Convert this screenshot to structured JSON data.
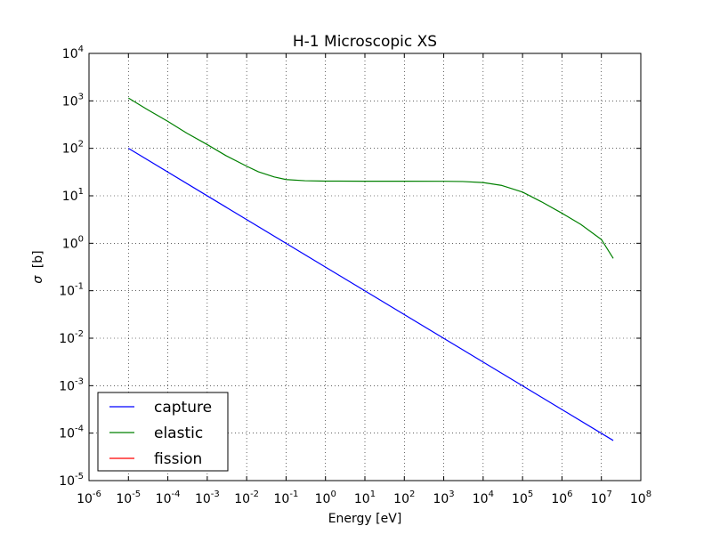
{
  "chart_data": {
    "type": "line",
    "title": "H-1 Microscopic XS",
    "xlabel": "Energy [eV]",
    "ylabel_symbol": "σ",
    "ylabel_unit": "[b]",
    "xscale": "log",
    "yscale": "log",
    "xlim": [
      1e-06,
      100000000.0
    ],
    "ylim": [
      1e-05,
      10000.0
    ],
    "grid": true,
    "x_ticks": [
      {
        "base": "10",
        "exp": "-6",
        "value": 1e-06
      },
      {
        "base": "10",
        "exp": "-5",
        "value": 1e-05
      },
      {
        "base": "10",
        "exp": "-4",
        "value": 0.0001
      },
      {
        "base": "10",
        "exp": "-3",
        "value": 0.001
      },
      {
        "base": "10",
        "exp": "-2",
        "value": 0.01
      },
      {
        "base": "10",
        "exp": "-1",
        "value": 0.1
      },
      {
        "base": "10",
        "exp": "0",
        "value": 1
      },
      {
        "base": "10",
        "exp": "1",
        "value": 10
      },
      {
        "base": "10",
        "exp": "2",
        "value": 100
      },
      {
        "base": "10",
        "exp": "3",
        "value": 1000
      },
      {
        "base": "10",
        "exp": "4",
        "value": 10000.0
      },
      {
        "base": "10",
        "exp": "5",
        "value": 100000.0
      },
      {
        "base": "10",
        "exp": "6",
        "value": 1000000.0
      },
      {
        "base": "10",
        "exp": "7",
        "value": 10000000.0
      },
      {
        "base": "10",
        "exp": "8",
        "value": 100000000.0
      }
    ],
    "y_ticks": [
      {
        "base": "10",
        "exp": "-5",
        "value": 1e-05
      },
      {
        "base": "10",
        "exp": "-4",
        "value": 0.0001
      },
      {
        "base": "10",
        "exp": "-3",
        "value": 0.001
      },
      {
        "base": "10",
        "exp": "-2",
        "value": 0.01
      },
      {
        "base": "10",
        "exp": "-1",
        "value": 0.1
      },
      {
        "base": "10",
        "exp": "0",
        "value": 1
      },
      {
        "base": "10",
        "exp": "1",
        "value": 10
      },
      {
        "base": "10",
        "exp": "2",
        "value": 100
      },
      {
        "base": "10",
        "exp": "3",
        "value": 1000
      },
      {
        "base": "10",
        "exp": "4",
        "value": 10000.0
      }
    ],
    "legend_position": "bottom-left",
    "series": [
      {
        "name": "capture",
        "color": "#0000ff",
        "points": [
          [
            1e-05,
            100
          ],
          [
            20000000.0,
            7e-05
          ]
        ]
      },
      {
        "name": "elastic",
        "color": "#008000",
        "points": [
          [
            1e-05,
            1150
          ],
          [
            3e-05,
            660
          ],
          [
            0.0001,
            370
          ],
          [
            0.0003,
            210
          ],
          [
            0.001,
            120
          ],
          [
            0.003,
            70
          ],
          [
            0.01,
            42
          ],
          [
            0.02,
            32
          ],
          [
            0.05,
            25
          ],
          [
            0.1,
            22
          ],
          [
            0.3,
            20.8
          ],
          [
            1,
            20.4
          ],
          [
            10,
            20.3
          ],
          [
            100,
            20.3
          ],
          [
            1000,
            20.2
          ],
          [
            3000,
            20
          ],
          [
            10000.0,
            19
          ],
          [
            30000.0,
            16.5
          ],
          [
            100000.0,
            12
          ],
          [
            300000.0,
            7.5
          ],
          [
            1000000.0,
            4.3
          ],
          [
            3000000.0,
            2.5
          ],
          [
            10000000.0,
            1.2
          ],
          [
            20000000.0,
            0.48
          ]
        ]
      },
      {
        "name": "fission",
        "color": "#ff0000",
        "points": []
      }
    ]
  }
}
